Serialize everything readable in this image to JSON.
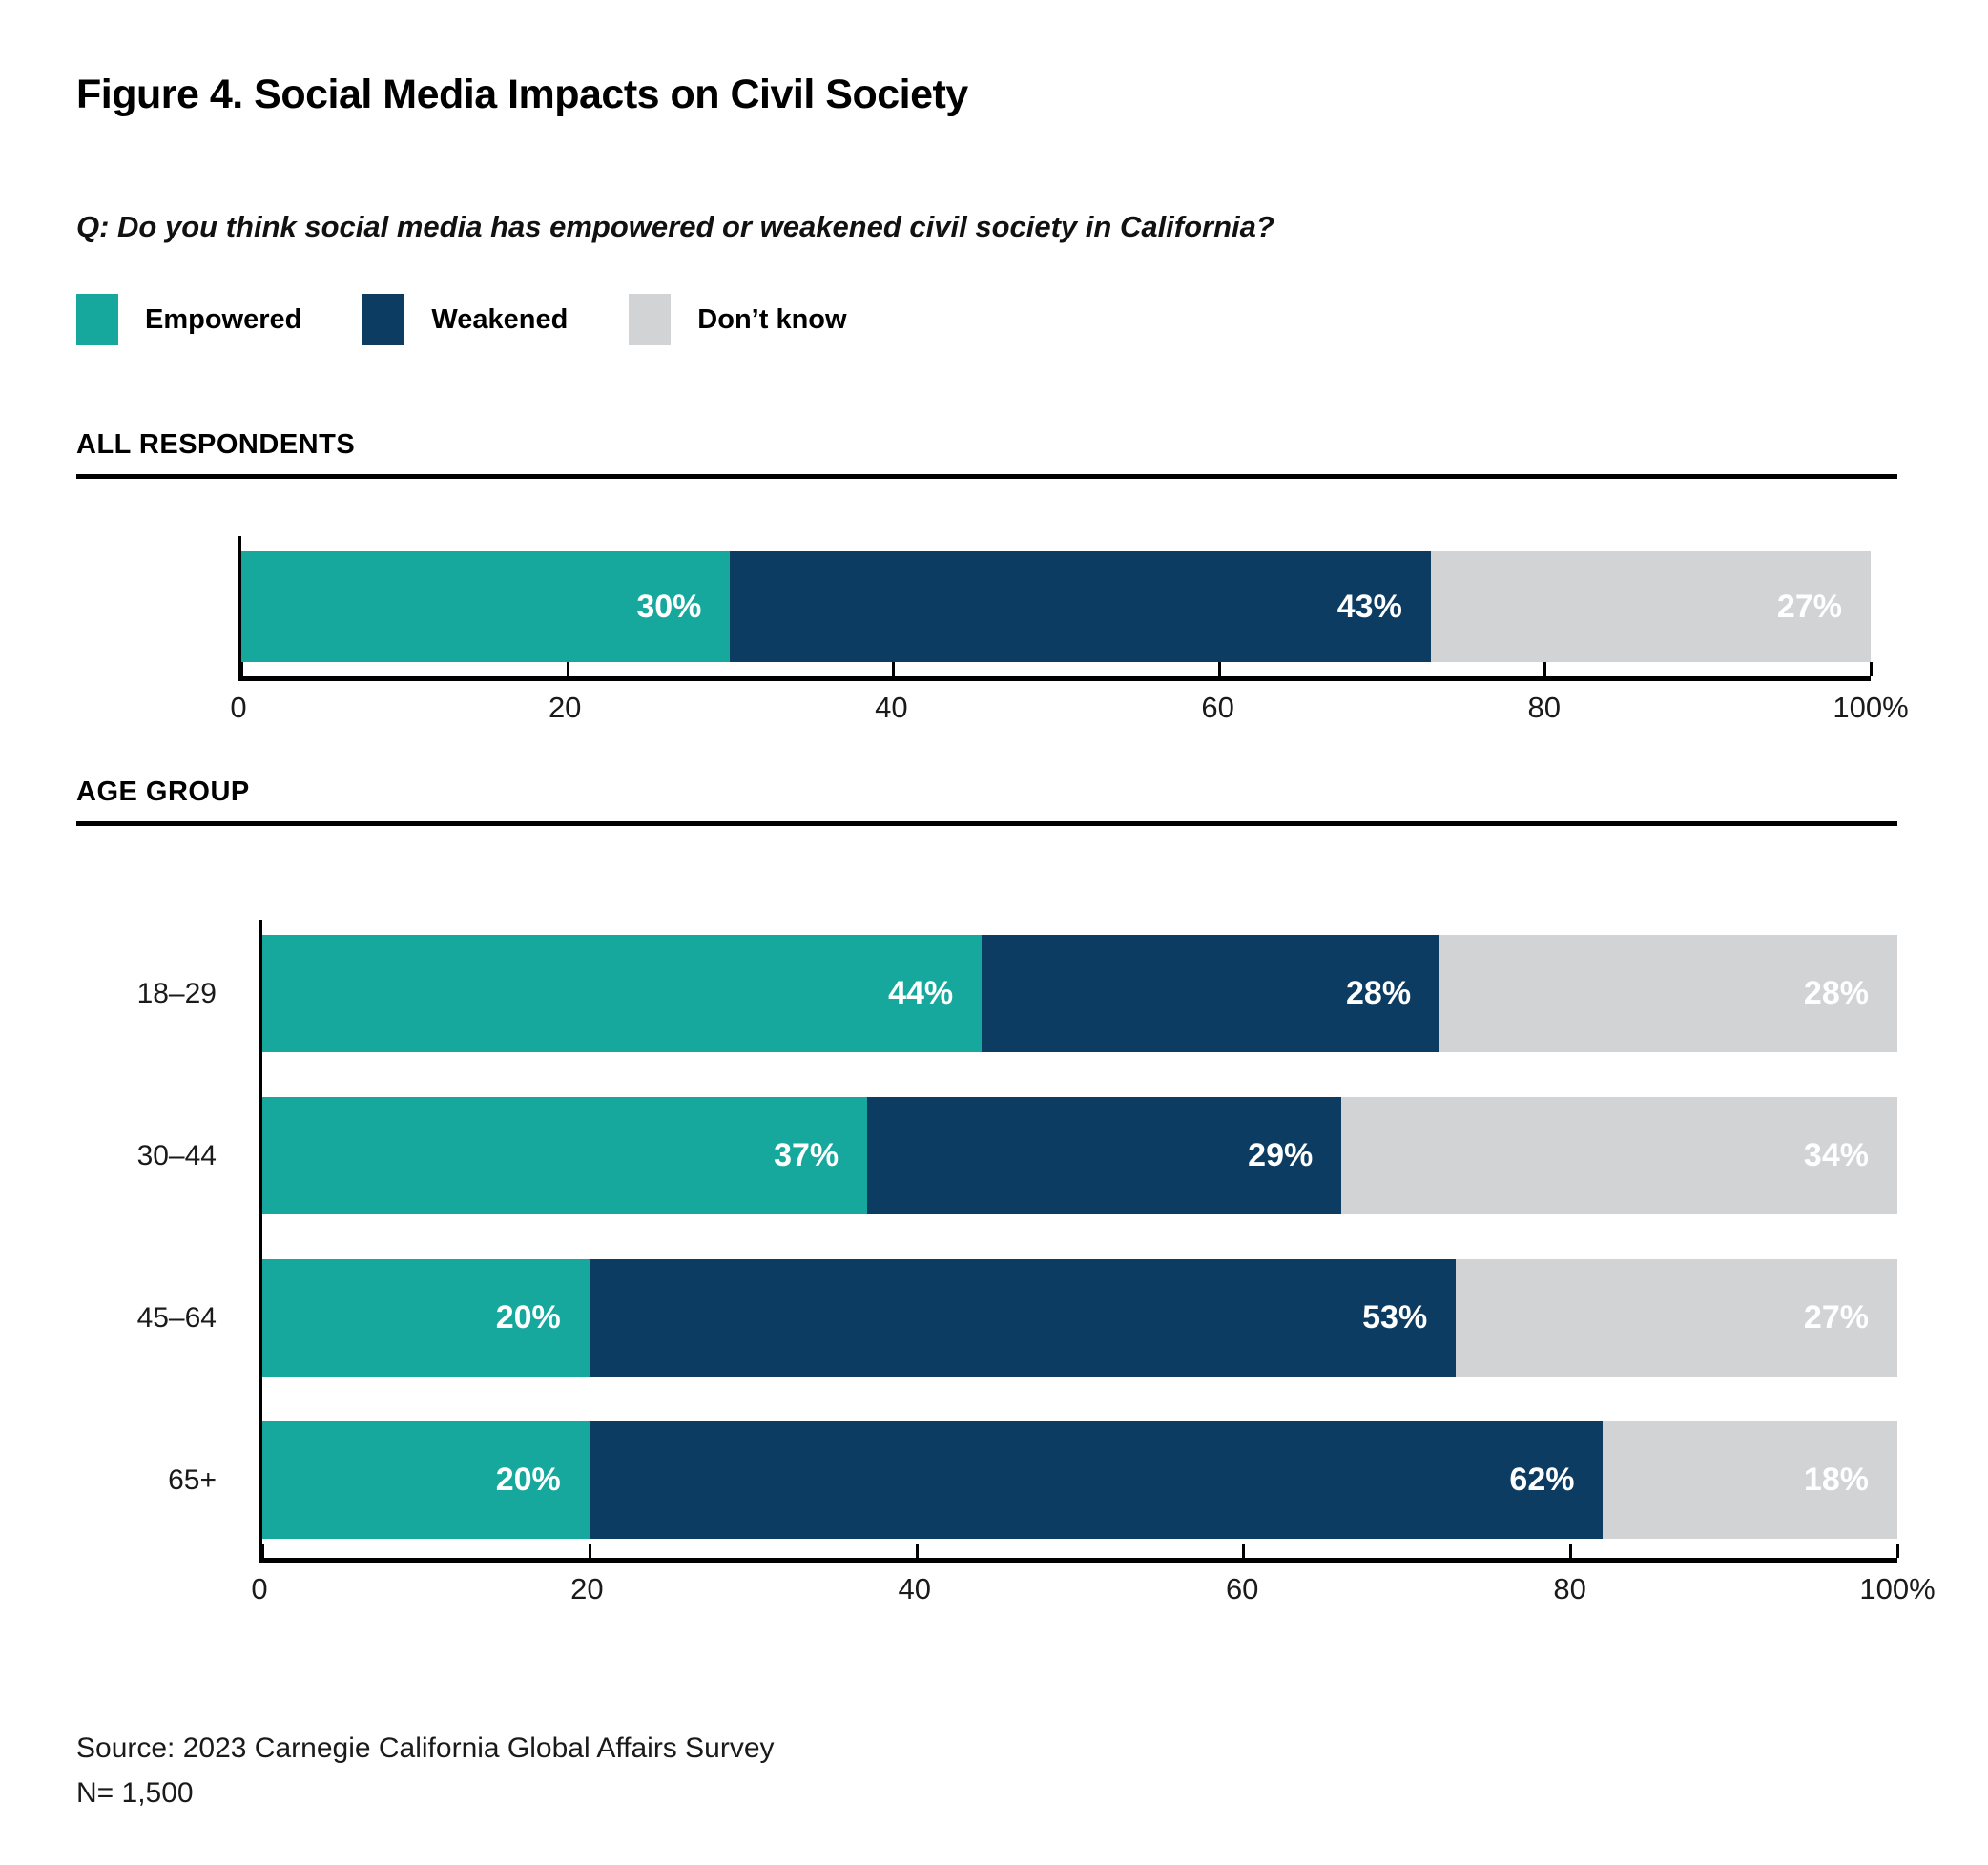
{
  "page": {
    "title": "Figure 4. Social Media Impacts on Civil Society",
    "question": "Q: Do you think social media has empowered or weakened civil society in California?",
    "source_line1": "Source: 2023 Carnegie California Global Affairs Survey",
    "source_line2": "N= 1,500"
  },
  "legend": {
    "items": [
      {
        "key": "empowered",
        "label": "Empowered",
        "color": "#16A89D"
      },
      {
        "key": "weakened",
        "label": "Weakened",
        "color": "#0C3C61"
      },
      {
        "key": "dont-know",
        "label": "Don’t know",
        "color": "#D1D3D4"
      }
    ]
  },
  "colors": {
    "empowered": "#16A89D",
    "weakened": "#0C3C61",
    "dont_know": "#D1D3D4",
    "axis": "#000000",
    "bar_label_text": "#ffffff"
  },
  "chart_data": [
    {
      "type": "bar",
      "orientation": "horizontal",
      "stacked": true,
      "section_title": "ALL RESPONDENTS",
      "categories": [
        ""
      ],
      "series": [
        {
          "key": "empowered",
          "name": "Empowered",
          "color": "#16A89D",
          "values": [
            30
          ]
        },
        {
          "key": "weakened",
          "name": "Weakened",
          "color": "#0C3C61",
          "values": [
            43
          ]
        },
        {
          "key": "dont-know",
          "name": "Don’t know",
          "color": "#D1D3D4",
          "values": [
            27
          ]
        }
      ],
      "value_suffix": "%",
      "xlim": [
        0,
        100
      ],
      "xticks": [
        "0",
        "20",
        "40",
        "60",
        "80",
        "100%"
      ],
      "xtick_positions": [
        0,
        20,
        40,
        60,
        80,
        100
      ],
      "grid": false,
      "legend_position": "top"
    },
    {
      "type": "bar",
      "orientation": "horizontal",
      "stacked": true,
      "section_title": "AGE GROUP",
      "categories": [
        "18–29",
        "30–44",
        "45–64",
        "65+"
      ],
      "series": [
        {
          "key": "empowered",
          "name": "Empowered",
          "color": "#16A89D",
          "values": [
            44,
            37,
            20,
            20
          ]
        },
        {
          "key": "weakened",
          "name": "Weakened",
          "color": "#0C3C61",
          "values": [
            28,
            29,
            53,
            62
          ]
        },
        {
          "key": "dont-know",
          "name": "Don’t know",
          "color": "#D1D3D4",
          "values": [
            28,
            34,
            27,
            18
          ]
        }
      ],
      "value_suffix": "%",
      "xlim": [
        0,
        100
      ],
      "xticks": [
        "0",
        "20",
        "40",
        "60",
        "80",
        "100%"
      ],
      "xtick_positions": [
        0,
        20,
        40,
        60,
        80,
        100
      ],
      "grid": false,
      "legend_position": "top"
    }
  ]
}
